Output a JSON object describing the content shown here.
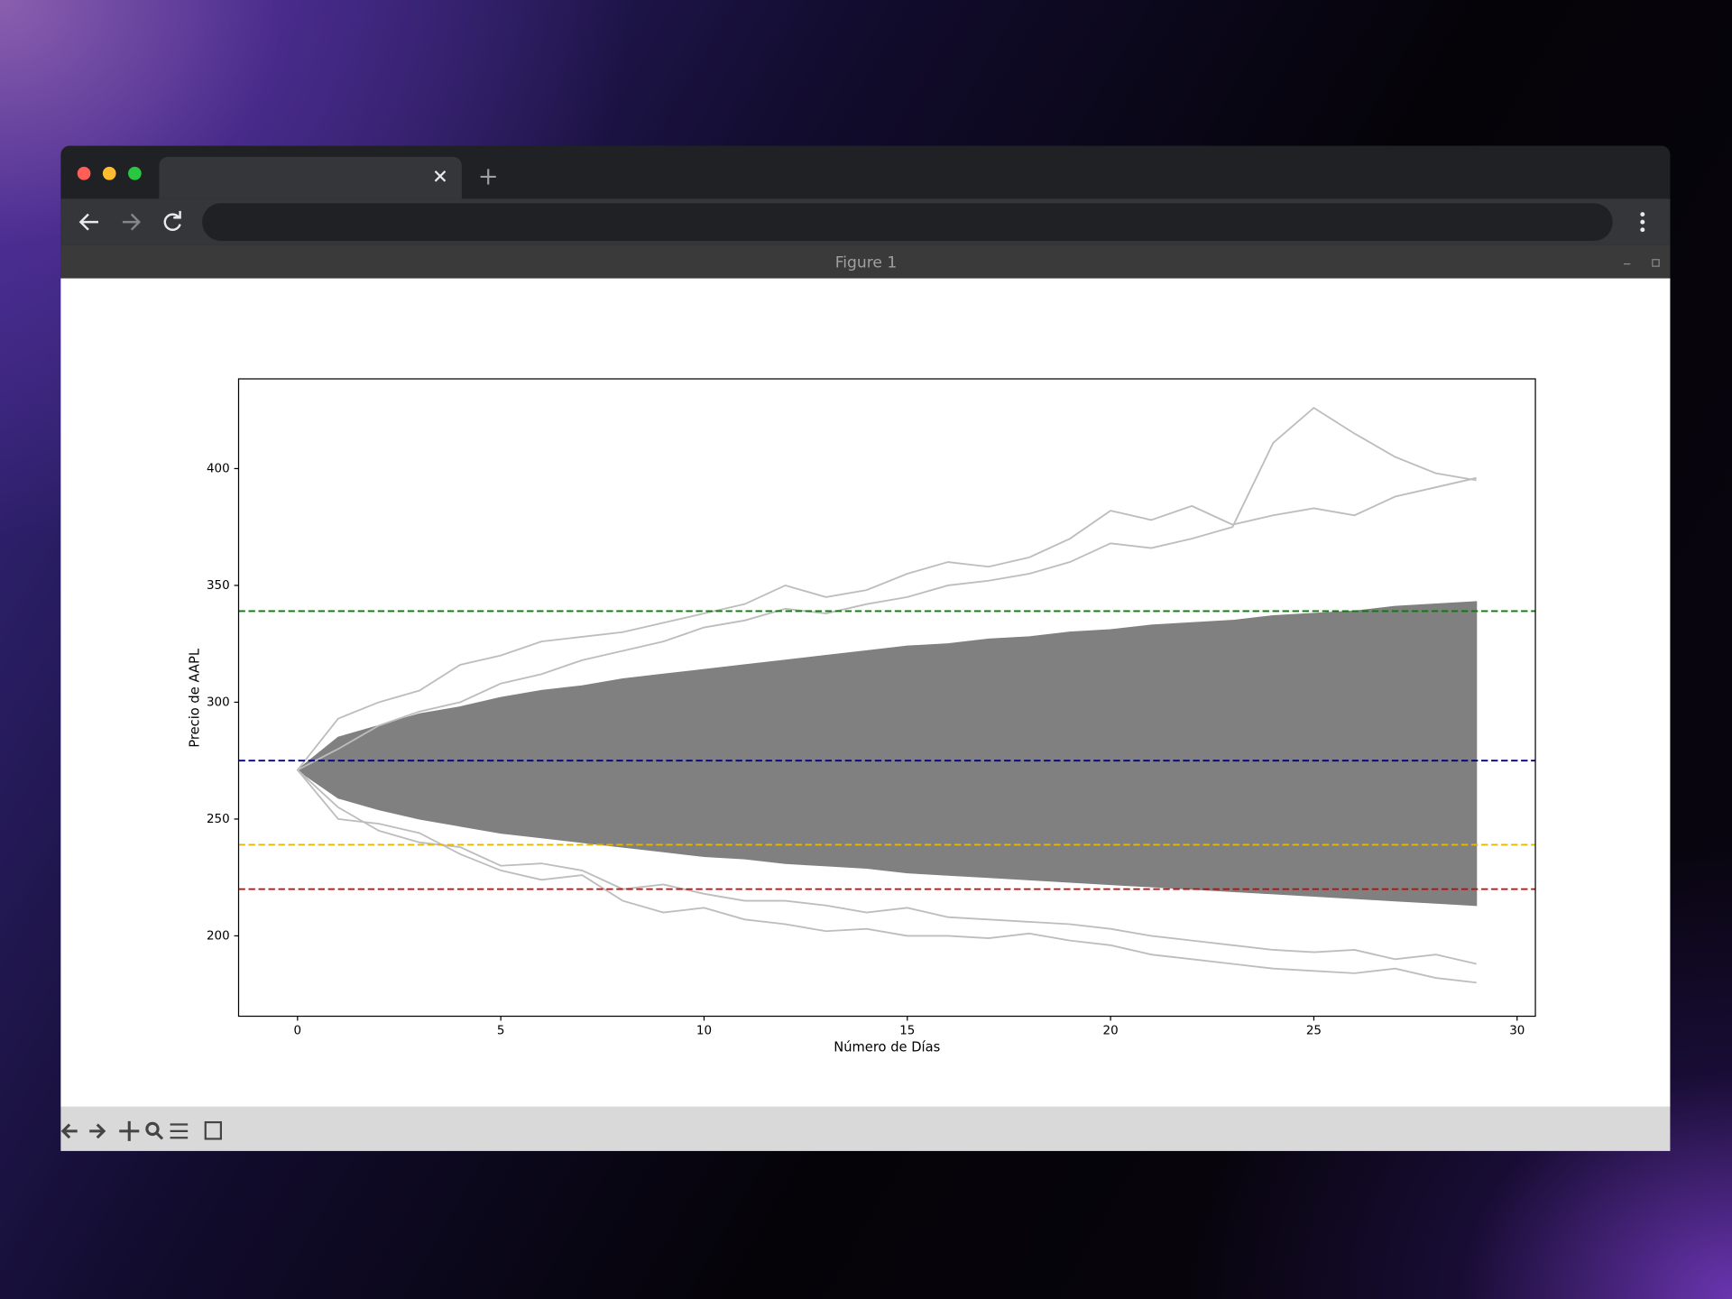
{
  "window": {
    "title": "Figure 1"
  },
  "chart_data": {
    "type": "line",
    "xlabel": "Número de Días",
    "ylabel": "Precio de AAPL",
    "x": [
      0,
      1,
      2,
      3,
      4,
      5,
      6,
      7,
      8,
      9,
      10,
      11,
      12,
      13,
      14,
      15,
      16,
      17,
      18,
      19,
      20,
      21,
      22,
      23,
      24,
      25,
      26,
      27,
      28,
      29
    ],
    "band": {
      "color": "#808080",
      "upper": [
        271,
        285,
        290,
        295,
        298,
        302,
        305,
        307,
        310,
        312,
        314,
        316,
        318,
        320,
        322,
        324,
        325,
        327,
        328,
        330,
        331,
        333,
        334,
        335,
        337,
        338,
        339,
        341,
        342,
        343
      ],
      "lower": [
        271,
        259,
        254,
        250,
        247,
        244,
        242,
        240,
        238,
        236,
        234,
        233,
        231,
        230,
        229,
        227,
        226,
        225,
        224,
        223,
        222,
        221,
        220,
        219,
        218,
        217,
        216,
        215,
        214,
        213
      ]
    },
    "lines": {
      "color": "#bdbdbd",
      "paths": [
        [
          271,
          280,
          290,
          296,
          300,
          308,
          312,
          318,
          322,
          326,
          332,
          335,
          340,
          338,
          342,
          345,
          350,
          352,
          355,
          360,
          368,
          366,
          370,
          375,
          411,
          426,
          415,
          405,
          398,
          395
        ],
        [
          271,
          293,
          300,
          305,
          316,
          320,
          326,
          328,
          330,
          334,
          338,
          342,
          350,
          345,
          348,
          355,
          360,
          358,
          362,
          370,
          382,
          378,
          384,
          376,
          380,
          383,
          380,
          388,
          392,
          396
        ],
        [
          271,
          250,
          248,
          244,
          235,
          228,
          224,
          226,
          215,
          210,
          212,
          207,
          205,
          202,
          203,
          200,
          200,
          199,
          201,
          198,
          196,
          192,
          190,
          188,
          186,
          185,
          184,
          186,
          182,
          180
        ],
        [
          271,
          255,
          245,
          240,
          238,
          230,
          231,
          228,
          220,
          222,
          218,
          215,
          215,
          213,
          210,
          212,
          208,
          207,
          206,
          205,
          203,
          200,
          198,
          196,
          194,
          193,
          194,
          190,
          192,
          188
        ]
      ]
    },
    "hlines": [
      {
        "value": 339,
        "color": "#008000"
      },
      {
        "value": 275,
        "color": "#00008b"
      },
      {
        "value": 239,
        "color": "#e6b800"
      },
      {
        "value": 220,
        "color": "#d00000"
      }
    ],
    "xlim": [
      -1.45,
      30.45
    ],
    "xticks": [
      0,
      5,
      10,
      15,
      20,
      25,
      30
    ],
    "ylim": [
      165.6,
      438.4
    ],
    "yticks": [
      200,
      250,
      300,
      350,
      400
    ]
  }
}
